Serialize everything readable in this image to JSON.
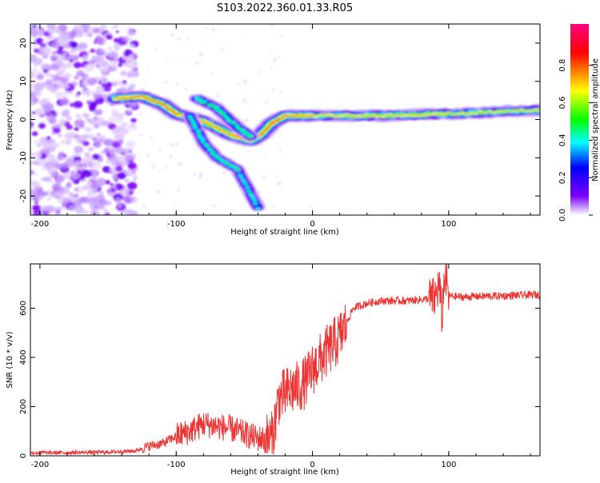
{
  "title": "S103.2022.360.01.33.R05",
  "chart_data": [
    {
      "type": "heatmap",
      "xlabel": "Height of straight line (km)",
      "ylabel": "Frequency (Hz)",
      "xlim": [
        -207,
        167
      ],
      "ylim": [
        -25,
        25
      ],
      "xticks": [
        -200,
        -100,
        0,
        100
      ],
      "yticks": [
        -20,
        -10,
        0,
        10,
        20
      ],
      "colorbar": {
        "label": "Normalized spectral amplitude",
        "range": [
          0,
          1
        ],
        "ticks": [
          "0.0",
          "0.2",
          "0.4",
          "0.6",
          "0.8"
        ],
        "colors": [
          "#ffffff",
          "#7a00ff",
          "#0000ff",
          "#00ffff",
          "#00ff00",
          "#ffff00",
          "#ff0000",
          "#ff0080"
        ]
      },
      "features": [
        {
          "name": "noise",
          "x_range": [
            -207,
            -130
          ],
          "y_range": [
            -25,
            25
          ],
          "amplitude": 0.15
        },
        {
          "name": "carrier",
          "points": [
            [
              -145,
              5.5
            ],
            [
              -125,
              6.0
            ],
            [
              -110,
              4.0
            ],
            [
              -100,
              1.5
            ],
            [
              -80,
              -0.5
            ],
            [
              -60,
              -4.0
            ],
            [
              -45,
              -5.5
            ],
            [
              -38,
              -4.0
            ],
            [
              -30,
              -1.0
            ],
            [
              -20,
              1.0
            ],
            [
              0,
              1.0
            ],
            [
              50,
              1.0
            ],
            [
              100,
              1.5
            ],
            [
              167,
              2.5
            ]
          ]
        },
        {
          "name": "branch-upper",
          "points": [
            [
              -85,
              5.5
            ],
            [
              -70,
              3.0
            ],
            [
              -55,
              -2.0
            ],
            [
              -45,
              -4.5
            ]
          ]
        },
        {
          "name": "branch-lower",
          "points": [
            [
              -90,
              1.0
            ],
            [
              -80,
              -6.0
            ],
            [
              -70,
              -10.0
            ],
            [
              -55,
              -13.0
            ],
            [
              -40,
              -23.0
            ]
          ]
        }
      ]
    },
    {
      "type": "line",
      "xlabel": "Height of straight line (km)",
      "ylabel": "SNR (10 * v/v)",
      "xlim": [
        -207,
        167
      ],
      "ylim": [
        0,
        780
      ],
      "xticks": [
        -200,
        -100,
        0,
        100
      ],
      "yticks": [
        0,
        200,
        400,
        600
      ],
      "color": "#ee3333",
      "series": [
        {
          "x": [
            -207,
            -180,
            -150,
            -130,
            -120,
            -110,
            -100,
            -90,
            -80,
            -70,
            -60,
            -50,
            -40,
            -30,
            -27,
            -25,
            -20,
            -15,
            -10,
            -5,
            0,
            10,
            20,
            25,
            30,
            40,
            50,
            60,
            70,
            80,
            90,
            93,
            95,
            97,
            100,
            110,
            120,
            140,
            167
          ],
          "y": [
            12,
            13,
            15,
            20,
            40,
            50,
            80,
            100,
            130,
            120,
            110,
            90,
            70,
            70,
            150,
            230,
            250,
            270,
            280,
            300,
            350,
            420,
            480,
            540,
            600,
            620,
            630,
            630,
            630,
            635,
            640,
            700,
            560,
            740,
            650,
            645,
            648,
            650,
            655
          ]
        }
      ]
    }
  ]
}
